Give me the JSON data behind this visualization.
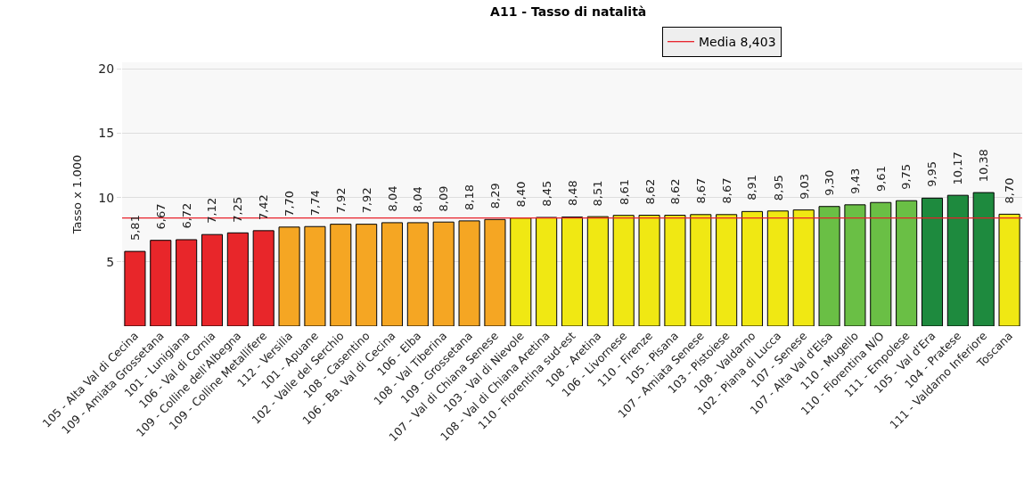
{
  "chart_data": {
    "type": "bar",
    "title": "A11 - Tasso di natalità",
    "ylabel": "Tasso x 1.000",
    "categories": [
      "105 - Alta Val di Cecina",
      "109 - Amiata Grossetana",
      "101 - Lunigiana",
      "106 - Val di Cornia",
      "109 - Colline dell'Albegna",
      "109 - Colline Metallifere",
      "112 - Versilia",
      "101 - Apuane",
      "102 - Valle del Serchio",
      "108 - Casentino",
      "106 - Ba. Val di Cecina",
      "106 - Elba",
      "108 - Val Tiberina",
      "109 - Grossetana",
      "107 - Val di Chiana Senese",
      "103 - Val di Nievole",
      "108 - Val di Chiana Aretina",
      "110 - Fiorentina sud-est",
      "108 - Aretina",
      "106 - Livornese",
      "110 - Firenze",
      "105 - Pisana",
      "107 - Amiata Senese",
      "103 - Pistoiese",
      "108 - Valdarno",
      "102 - Piana di Lucca",
      "107 - Senese",
      "107 - Alta Val d'Elsa",
      "110 - Mugello",
      "110 - Fiorentina N/O",
      "111 - Empolese",
      "105 - Val d'Era",
      "104 - Pratese",
      "111 - Valdarno Inferiore",
      "Toscana"
    ],
    "values": [
      5.81,
      6.67,
      6.72,
      7.12,
      7.25,
      7.42,
      7.7,
      7.74,
      7.92,
      7.92,
      8.04,
      8.04,
      8.09,
      8.18,
      8.29,
      8.4,
      8.45,
      8.48,
      8.51,
      8.61,
      8.62,
      8.62,
      8.67,
      8.67,
      8.91,
      8.95,
      9.03,
      9.3,
      9.43,
      9.61,
      9.75,
      9.95,
      10.17,
      10.38,
      8.7
    ],
    "value_labels": [
      "5,81",
      "6,67",
      "6,72",
      "7,12",
      "7,25",
      "7,42",
      "7,70",
      "7,74",
      "7,92",
      "7,92",
      "8,04",
      "8,04",
      "8,09",
      "8,18",
      "8,29",
      "8,40",
      "8,45",
      "8,48",
      "8,51",
      "8,61",
      "8,62",
      "8,62",
      "8,67",
      "8,67",
      "8,91",
      "8,95",
      "9,03",
      "9,30",
      "9,43",
      "9,61",
      "9,75",
      "9,95",
      "10,17",
      "10,38",
      "8,70"
    ],
    "colors": [
      "#e8262a",
      "#e8262a",
      "#e8262a",
      "#e8262a",
      "#e8262a",
      "#e8262a",
      "#f5a623",
      "#f5a623",
      "#f5a623",
      "#f5a623",
      "#f5a623",
      "#f5a623",
      "#f5a623",
      "#f5a623",
      "#f5a623",
      "#f0e813",
      "#f0e813",
      "#f0e813",
      "#f0e813",
      "#f0e813",
      "#f0e813",
      "#f0e813",
      "#f0e813",
      "#f0e813",
      "#f0e813",
      "#f0e813",
      "#f0e813",
      "#6abf45",
      "#6abf45",
      "#6abf45",
      "#6abf45",
      "#1e8a3e",
      "#1e8a3e",
      "#1e8a3e",
      "#f0e813"
    ],
    "ylim": [
      0,
      20.5
    ],
    "yticks": [
      5,
      10,
      15,
      20
    ],
    "grid": "y",
    "legend": "top",
    "ref_lines": [
      {
        "axis": "y",
        "value": 8.403,
        "label": "Media 8,403",
        "color": "#e8202a"
      }
    ]
  }
}
